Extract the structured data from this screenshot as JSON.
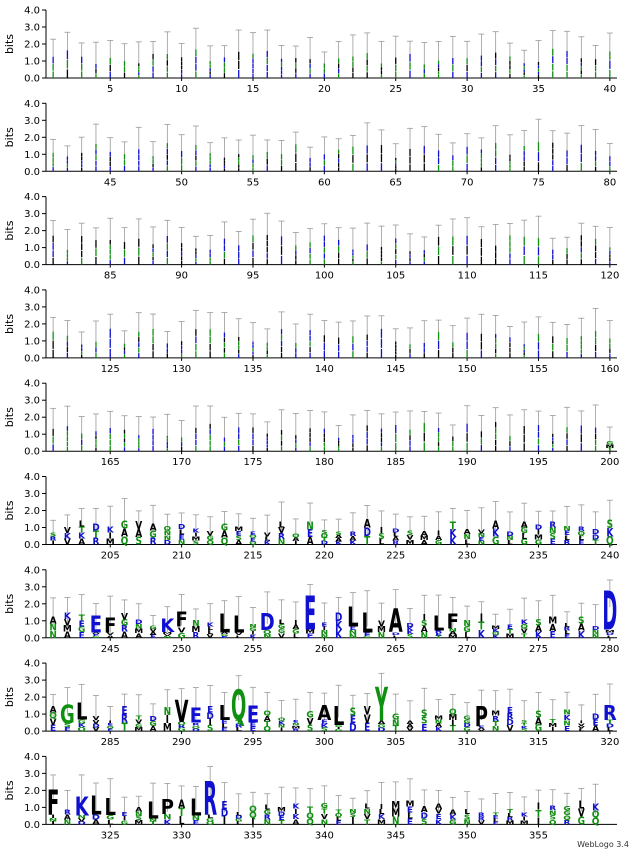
{
  "chart_data": {
    "type": "sequence-logo",
    "ylabel": "bits",
    "yticks": [
      "0.0",
      "1.0",
      "2.0",
      "3.0",
      "4.0"
    ],
    "ylim": [
      0,
      4.0
    ],
    "credit": "WebLogo 3.4",
    "colors": {
      "hydrophobic": "#000000",
      "polar": "#109010",
      "basic": "#1010d0",
      "acidic": "#1010d0",
      "error_bar": "#9a9a9a"
    },
    "rows": [
      {
        "start": 1,
        "end": 40,
        "ticks": [
          "5",
          "10",
          "15",
          "20",
          "25",
          "30",
          "35",
          "40"
        ]
      },
      {
        "start": 41,
        "end": 80,
        "ticks": [
          "45",
          "50",
          "55",
          "60",
          "65",
          "70",
          "75",
          "80"
        ]
      },
      {
        "start": 81,
        "end": 120,
        "ticks": [
          "85",
          "90",
          "95",
          "100",
          "105",
          "110",
          "115",
          "120"
        ]
      },
      {
        "start": 121,
        "end": 160,
        "ticks": [
          "125",
          "130",
          "135",
          "140",
          "145",
          "150",
          "155",
          "160"
        ]
      },
      {
        "start": 161,
        "end": 200,
        "ticks": [
          "165",
          "170",
          "175",
          "180",
          "185",
          "190",
          "195",
          "200"
        ]
      },
      {
        "start": 201,
        "end": 240,
        "ticks": [
          "205",
          "210",
          "215",
          "220",
          "225",
          "230",
          "235",
          "240"
        ]
      },
      {
        "start": 241,
        "end": 280,
        "ticks": [
          "245",
          "250",
          "255",
          "260",
          "265",
          "270",
          "275",
          "280"
        ]
      },
      {
        "start": 281,
        "end": 320,
        "ticks": [
          "285",
          "290",
          "295",
          "300",
          "305",
          "310",
          "315",
          "320"
        ]
      },
      {
        "start": 321,
        "end": 359,
        "ticks": [
          "325",
          "330",
          "335",
          "340",
          "345",
          "350",
          "355"
        ]
      }
    ],
    "major_letters": [
      {
        "pos": 244,
        "letter": "E",
        "bits": 1.0
      },
      {
        "pos": 245,
        "letter": "F",
        "bits": 0.9
      },
      {
        "pos": 249,
        "letter": "K",
        "bits": 0.8
      },
      {
        "pos": 250,
        "letter": "F",
        "bits": 0.9
      },
      {
        "pos": 253,
        "letter": "L",
        "bits": 1.1
      },
      {
        "pos": 254,
        "letter": "L",
        "bits": 1.0
      },
      {
        "pos": 256,
        "letter": "D",
        "bits": 1.0
      },
      {
        "pos": 259,
        "letter": "E",
        "bits": 2.0
      },
      {
        "pos": 262,
        "letter": "L",
        "bits": 1.2
      },
      {
        "pos": 263,
        "letter": "L",
        "bits": 1.2
      },
      {
        "pos": 265,
        "letter": "A",
        "bits": 1.4
      },
      {
        "pos": 268,
        "letter": "L",
        "bits": 0.9
      },
      {
        "pos": 269,
        "letter": "F",
        "bits": 0.9
      },
      {
        "pos": 280,
        "letter": "D",
        "bits": 2.3
      },
      {
        "pos": 282,
        "letter": "G",
        "bits": 1.1
      },
      {
        "pos": 283,
        "letter": "L",
        "bits": 1.0
      },
      {
        "pos": 290,
        "letter": "V",
        "bits": 1.3
      },
      {
        "pos": 291,
        "letter": "E",
        "bits": 0.9
      },
      {
        "pos": 293,
        "letter": "L",
        "bits": 0.9
      },
      {
        "pos": 294,
        "letter": "Q",
        "bits": 1.8
      },
      {
        "pos": 295,
        "letter": "E",
        "bits": 1.0
      },
      {
        "pos": 300,
        "letter": "A",
        "bits": 0.9
      },
      {
        "pos": 301,
        "letter": "L",
        "bits": 1.1
      },
      {
        "pos": 304,
        "letter": "Y",
        "bits": 2.0
      },
      {
        "pos": 311,
        "letter": "P",
        "bits": 1.2
      },
      {
        "pos": 320,
        "letter": "R",
        "bits": 0.9
      },
      {
        "pos": 321,
        "letter": "F",
        "bits": 1.5
      },
      {
        "pos": 323,
        "letter": "K",
        "bits": 1.1
      },
      {
        "pos": 324,
        "letter": "L",
        "bits": 1.1
      },
      {
        "pos": 325,
        "letter": "L",
        "bits": 1.0
      },
      {
        "pos": 328,
        "letter": "L",
        "bits": 1.0
      },
      {
        "pos": 329,
        "letter": "P",
        "bits": 0.9
      },
      {
        "pos": 331,
        "letter": "L",
        "bits": 1.0
      },
      {
        "pos": 332,
        "letter": "R",
        "bits": 2.0
      }
    ]
  }
}
